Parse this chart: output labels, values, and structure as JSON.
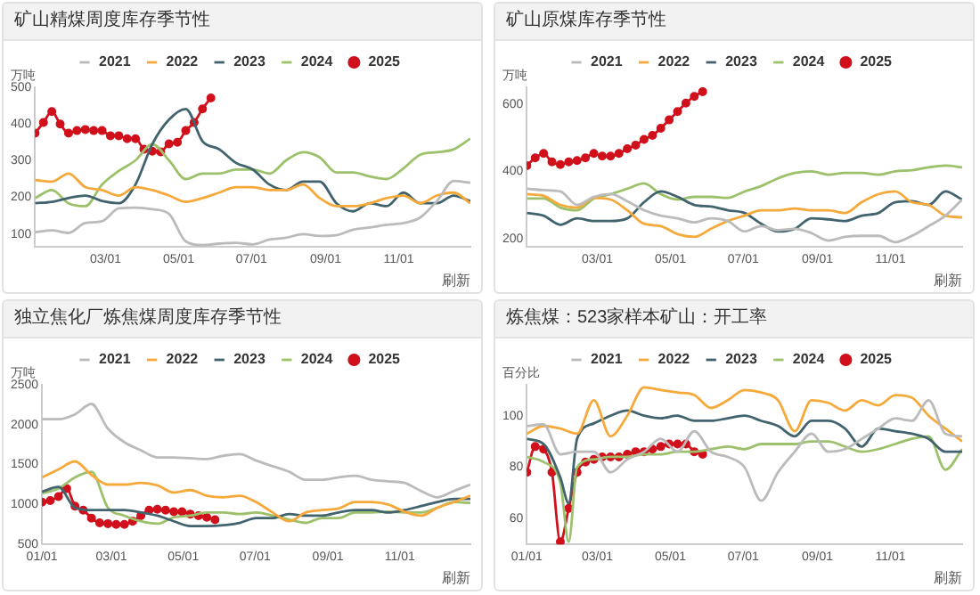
{
  "chart_data": [
    {
      "type": "line",
      "title": "矿山精煤周度库存季节性",
      "ylabel": "万吨",
      "legend": "top",
      "annotations": [
        "刷新"
      ],
      "x": [
        "--01-01",
        "--01-15",
        "--01-29",
        "--02-12",
        "--02-26",
        "--03-12",
        "--03-26",
        "--04-09",
        "--04-23",
        "--05-07",
        "--05-21",
        "--06-04",
        "--06-18",
        "--07-02",
        "--07-16",
        "--07-30",
        "--08-13",
        "--08-27",
        "--09-10",
        "--09-24",
        "--10-08",
        "--10-22",
        "--11-05",
        "--11-19",
        "--12-03",
        "--12-17",
        "--12-31"
      ],
      "xlim": [
        "--01-01",
        "--12-31"
      ],
      "xticks": [
        {
          "value": "--03-01",
          "label": "03/01"
        },
        {
          "value": "--05-01",
          "label": "05/01"
        },
        {
          "value": "--07-01",
          "label": "07/01"
        },
        {
          "value": "--09-01",
          "label": "09/01"
        },
        {
          "value": "--11-01",
          "label": "11/01"
        }
      ],
      "ylim": [
        65,
        500
      ],
      "yticks": [
        100,
        200,
        300,
        400,
        500
      ],
      "series": [
        {
          "name": "2021",
          "color": "#bbbbbb",
          "values": [
            105,
            110,
            103,
            130,
            135,
            170,
            172,
            168,
            155,
            80,
            70,
            74,
            76,
            72,
            85,
            90,
            100,
            95,
            97,
            112,
            118,
            125,
            130,
            145,
            190,
            245,
            240
          ]
        },
        {
          "name": "2022",
          "color": "#f5a93a",
          "values": [
            247,
            243,
            265,
            228,
            220,
            205,
            228,
            220,
            205,
            188,
            198,
            213,
            228,
            228,
            220,
            220,
            235,
            198,
            176,
            176,
            184,
            198,
            205,
            184,
            205,
            213,
            184
          ]
        },
        {
          "name": "2023",
          "color": "#41636e",
          "values": [
            184,
            188,
            198,
            205,
            190,
            184,
            235,
            345,
            412,
            441,
            353,
            331,
            294,
            276,
            235,
            220,
            243,
            243,
            184,
            162,
            184,
            176,
            213,
            184,
            184,
            205,
            190
          ]
        },
        {
          "name": "2024",
          "color": "#9dc16b",
          "values": [
            198,
            220,
            184,
            176,
            235,
            272,
            301,
            345,
            301,
            250,
            265,
            265,
            276,
            276,
            265,
            301,
            323,
            309,
            268,
            268,
            257,
            250,
            279,
            316,
            323,
            331,
            360
          ]
        },
        {
          "name": "2025",
          "color": "#d0101b",
          "marker": "circle",
          "x": [
            "--01-01",
            "--01-08",
            "--01-15",
            "--01-22",
            "--01-29",
            "--02-05",
            "--02-12",
            "--02-19",
            "--02-26",
            "--03-05",
            "--03-12",
            "--03-19",
            "--03-26",
            "--04-02",
            "--04-09",
            "--04-16",
            "--04-23",
            "--04-30",
            "--05-07",
            "--05-14",
            "--05-21",
            "--05-28"
          ],
          "values": [
            375,
            404,
            434,
            400,
            375,
            382,
            385,
            382,
            382,
            368,
            368,
            360,
            360,
            331,
            326,
            324,
            346,
            350,
            382,
            404,
            441,
            471
          ]
        }
      ]
    },
    {
      "type": "line",
      "title": "矿山原煤库存季节性",
      "ylabel": "万吨",
      "legend": "top",
      "annotations": [
        "刷新"
      ],
      "x": [
        "--01-01",
        "--01-15",
        "--01-29",
        "--02-12",
        "--02-26",
        "--03-12",
        "--03-26",
        "--04-09",
        "--04-23",
        "--05-07",
        "--05-21",
        "--06-04",
        "--06-18",
        "--07-02",
        "--07-16",
        "--07-30",
        "--08-13",
        "--08-27",
        "--09-10",
        "--09-24",
        "--10-08",
        "--10-22",
        "--11-05",
        "--11-19",
        "--12-03",
        "--12-17",
        "--12-31"
      ],
      "xlim": [
        "--01-01",
        "--12-31"
      ],
      "xticks": [
        {
          "value": "--03-01",
          "label": "03/01"
        },
        {
          "value": "--05-01",
          "label": "05/01"
        },
        {
          "value": "--07-01",
          "label": "07/01"
        },
        {
          "value": "--09-01",
          "label": "09/01"
        },
        {
          "value": "--11-01",
          "label": "11/01"
        }
      ],
      "ylim": [
        175,
        650
      ],
      "yticks": [
        200,
        400,
        600
      ],
      "series": [
        {
          "name": "2021",
          "color": "#bbbbbb",
          "values": [
            348,
            344,
            340,
            300,
            324,
            332,
            311,
            284,
            268,
            260,
            248,
            260,
            252,
            221,
            237,
            225,
            229,
            216,
            194,
            205,
            208,
            208,
            189,
            208,
            237,
            268,
            316
          ]
        },
        {
          "name": "2022",
          "color": "#f5a93a",
          "values": [
            332,
            327,
            300,
            292,
            321,
            316,
            284,
            244,
            237,
            213,
            205,
            229,
            252,
            268,
            284,
            284,
            289,
            284,
            284,
            276,
            308,
            332,
            340,
            308,
            300,
            268,
            263
          ]
        },
        {
          "name": "2023",
          "color": "#41636e",
          "values": [
            276,
            268,
            241,
            260,
            252,
            252,
            260,
            308,
            340,
            324,
            300,
            295,
            284,
            276,
            244,
            221,
            229,
            260,
            257,
            252,
            268,
            276,
            308,
            311,
            300,
            340,
            316
          ]
        },
        {
          "name": "2024",
          "color": "#9dc16b",
          "values": [
            319,
            319,
            292,
            284,
            319,
            332,
            348,
            364,
            332,
            316,
            324,
            324,
            321,
            340,
            356,
            379,
            395,
            400,
            390,
            395,
            395,
            390,
            400,
            403,
            412,
            417,
            412
          ]
        },
        {
          "name": "2025",
          "color": "#d0101b",
          "marker": "circle",
          "x": [
            "--01-01",
            "--01-08",
            "--01-15",
            "--01-22",
            "--01-29",
            "--02-05",
            "--02-12",
            "--02-19",
            "--02-26",
            "--03-05",
            "--03-12",
            "--03-19",
            "--03-26",
            "--04-02",
            "--04-09",
            "--04-16",
            "--04-23",
            "--04-30",
            "--05-07",
            "--05-14",
            "--05-21",
            "--05-28"
          ],
          "values": [
            417,
            440,
            453,
            428,
            420,
            428,
            432,
            440,
            453,
            445,
            445,
            453,
            467,
            478,
            495,
            507,
            528,
            553,
            578,
            603,
            623,
            637
          ]
        }
      ]
    },
    {
      "type": "line",
      "title": "独立焦化厂炼焦煤周度库存季节性",
      "ylabel": "万吨",
      "legend": "top",
      "annotations": [
        "刷新"
      ],
      "x": [
        "--01-01",
        "--01-15",
        "--01-29",
        "--02-12",
        "--02-26",
        "--03-12",
        "--03-26",
        "--04-09",
        "--04-23",
        "--05-07",
        "--05-21",
        "--06-04",
        "--06-18",
        "--07-02",
        "--07-16",
        "--07-30",
        "--08-13",
        "--08-27",
        "--09-10",
        "--09-24",
        "--10-08",
        "--10-22",
        "--11-05",
        "--11-19",
        "--12-03",
        "--12-17",
        "--12-31"
      ],
      "xlim": [
        "--01-01",
        "--12-31"
      ],
      "xticks": [
        {
          "value": "--01-01",
          "label": "01/01"
        },
        {
          "value": "--03-01",
          "label": "03/01"
        },
        {
          "value": "--05-01",
          "label": "05/01"
        },
        {
          "value": "--07-01",
          "label": "07/01"
        },
        {
          "value": "--09-01",
          "label": "09/01"
        },
        {
          "value": "--11-01",
          "label": "11/01"
        }
      ],
      "ylim": [
        500,
        2500
      ],
      "yticks": [
        500,
        1000,
        1500,
        2000,
        2500
      ],
      "series": [
        {
          "name": "2021",
          "color": "#bbbbbb",
          "values": [
            2070,
            2070,
            2130,
            2260,
            1950,
            1780,
            1680,
            1590,
            1590,
            1580,
            1570,
            1610,
            1630,
            1550,
            1480,
            1410,
            1310,
            1310,
            1340,
            1360,
            1310,
            1290,
            1270,
            1170,
            1090,
            1170,
            1250
          ]
        },
        {
          "name": "2022",
          "color": "#f5a93a",
          "values": [
            1340,
            1440,
            1540,
            1370,
            1250,
            1250,
            1270,
            1240,
            1150,
            1180,
            1110,
            1090,
            1110,
            1030,
            900,
            790,
            900,
            930,
            950,
            1030,
            1030,
            1000,
            910,
            860,
            960,
            1030,
            1110
          ]
        },
        {
          "name": "2023",
          "color": "#41636e",
          "values": [
            1160,
            1220,
            960,
            930,
            930,
            930,
            900,
            860,
            790,
            730,
            730,
            740,
            770,
            830,
            830,
            880,
            860,
            860,
            900,
            930,
            930,
            900,
            930,
            980,
            1030,
            1070,
            1070
          ]
        },
        {
          "name": "2024",
          "color": "#9dc16b",
          "values": [
            1140,
            1200,
            1340,
            1410,
            960,
            860,
            790,
            760,
            840,
            860,
            900,
            900,
            880,
            900,
            860,
            810,
            770,
            830,
            830,
            900,
            900,
            910,
            900,
            900,
            960,
            1030,
            1020
          ]
        },
        {
          "name": "2025",
          "color": "#d0101b",
          "marker": "circle",
          "x": [
            "--01-01",
            "--01-08",
            "--01-15",
            "--01-22",
            "--01-29",
            "--02-05",
            "--02-12",
            "--02-19",
            "--02-26",
            "--03-05",
            "--03-12",
            "--03-19",
            "--03-26",
            "--04-02",
            "--04-09",
            "--04-16",
            "--04-23",
            "--04-30",
            "--05-07",
            "--05-14",
            "--05-21",
            "--05-28"
          ],
          "values": [
            1030,
            1050,
            1100,
            1200,
            980,
            930,
            830,
            770,
            760,
            750,
            750,
            790,
            860,
            930,
            940,
            930,
            910,
            910,
            880,
            860,
            840,
            810
          ]
        }
      ]
    },
    {
      "type": "line",
      "title": "炼焦煤：523家样本矿山：开工率",
      "ylabel": "百分比",
      "legend": "top",
      "annotations": [
        "刷新"
      ],
      "x": [
        "--01-01",
        "--01-15",
        "--01-29",
        "--02-12",
        "--02-26",
        "--03-12",
        "--03-26",
        "--04-09",
        "--04-23",
        "--05-07",
        "--05-21",
        "--06-04",
        "--06-18",
        "--07-02",
        "--07-16",
        "--07-30",
        "--08-13",
        "--08-27",
        "--09-10",
        "--09-24",
        "--10-08",
        "--10-22",
        "--11-05",
        "--11-19",
        "--12-03",
        "--12-17",
        "--12-31"
      ],
      "xlim": [
        "--01-01",
        "--12-31"
      ],
      "xticks": [
        {
          "value": "--01-01",
          "label": "01/01"
        },
        {
          "value": "--03-01",
          "label": "03/01"
        },
        {
          "value": "--05-01",
          "label": "05/01"
        },
        {
          "value": "--07-01",
          "label": "07/01"
        },
        {
          "value": "--09-01",
          "label": "09/01"
        },
        {
          "value": "--11-01",
          "label": "11/01"
        }
      ],
      "ylim": [
        50,
        112
      ],
      "yticks": [
        60,
        80,
        100
      ],
      "series": [
        {
          "name": "2021",
          "color": "#bbbbbb",
          "values": [
            96,
            96.6,
            85,
            86,
            86,
            78,
            83,
            86,
            91,
            86,
            94,
            86,
            84,
            80,
            67,
            78,
            86,
            93,
            86,
            87,
            91,
            95,
            99,
            98,
            106,
            93,
            92
          ]
        },
        {
          "name": "2022",
          "color": "#f5a93a",
          "values": [
            93,
            96,
            95,
            93,
            106,
            92,
            100,
            111,
            110,
            109,
            108,
            103,
            106,
            110,
            109,
            106,
            94,
            106,
            105,
            102,
            106,
            104,
            108,
            107,
            100,
            95,
            90
          ]
        },
        {
          "name": "2023",
          "color": "#41636e",
          "x": [
            "--01-01",
            "--01-15",
            "--01-29",
            "--02-05",
            "--02-12",
            "--02-26",
            "--03-12",
            "--03-26",
            "--04-09",
            "--04-23",
            "--05-07",
            "--05-21",
            "--06-04",
            "--06-18",
            "--07-02",
            "--07-16",
            "--07-30",
            "--08-13",
            "--08-27",
            "--09-10",
            "--09-24",
            "--10-08",
            "--10-22",
            "--11-05",
            "--11-19",
            "--12-03",
            "--12-17",
            "--12-31"
          ],
          "values": [
            91,
            89,
            76,
            66,
            91,
            97,
            100,
            102,
            100,
            99,
            100,
            98,
            98,
            99,
            100,
            98,
            96,
            92,
            98,
            98,
            95,
            88,
            95,
            94,
            93,
            91,
            86,
            86
          ]
        },
        {
          "name": "2024",
          "color": "#9dc16b",
          "x": [
            "--01-01",
            "--01-15",
            "--01-29",
            "--02-05",
            "--02-12",
            "--02-26",
            "--03-12",
            "--03-26",
            "--04-09",
            "--04-23",
            "--05-07",
            "--05-21",
            "--06-04",
            "--06-18",
            "--07-02",
            "--07-16",
            "--07-30",
            "--08-13",
            "--08-27",
            "--09-10",
            "--09-24",
            "--10-08",
            "--10-22",
            "--11-05",
            "--11-19",
            "--12-03",
            "--12-17",
            "--12-31"
          ],
          "values": [
            84,
            82,
            74,
            51,
            80,
            83,
            84,
            84,
            85,
            85,
            86,
            86,
            87,
            88,
            87,
            89,
            89,
            89,
            90,
            90,
            88,
            86,
            87,
            89,
            91,
            92,
            79,
            87
          ]
        },
        {
          "name": "2025",
          "color": "#d0101b",
          "marker": "circle",
          "x": [
            "--01-01",
            "--01-08",
            "--01-15",
            "--01-22",
            "--01-29",
            "--02-05",
            "--02-12",
            "--02-19",
            "--02-26",
            "--03-05",
            "--03-12",
            "--03-19",
            "--03-26",
            "--04-02",
            "--04-09",
            "--04-16",
            "--04-23",
            "--04-30",
            "--05-07",
            "--05-14",
            "--05-21",
            "--05-28"
          ],
          "values": [
            78,
            88,
            87,
            78,
            51,
            64,
            78,
            82,
            83,
            84,
            84,
            84,
            85,
            86,
            86,
            87,
            88,
            89,
            89,
            89,
            86,
            85
          ]
        }
      ]
    }
  ]
}
